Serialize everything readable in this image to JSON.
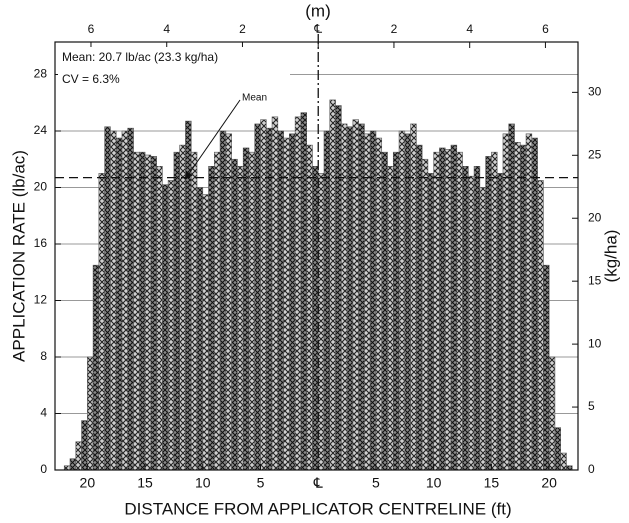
{
  "chart_data": {
    "type": "histogram",
    "y_label": "APPLICATION RATE (lb/ac)",
    "y2_label": "(kg/ha)",
    "x_label": "DISTANCE FROM APPLICATOR CENTRELINE (ft)",
    "x2_label": "(m)",
    "annotations": [
      "Mean: 20.7 lb/ac (23.3 kg/ha)",
      "CV = 6.3%",
      "Mean"
    ],
    "mean_line": 20.7,
    "bins": [
      -22,
      -21.5,
      -21,
      -20.5,
      -20,
      -19.5,
      -19,
      -18.5,
      -18,
      -17.5,
      -17,
      -16.5,
      -16,
      -15.5,
      -15,
      -14.5,
      -14,
      -13.5,
      -13,
      -12.5,
      -12,
      -11.5,
      -11,
      -10.5,
      -10,
      -9.5,
      -9,
      -8.5,
      -8,
      -7.5,
      -7,
      -6.5,
      -6,
      -5.5,
      -5,
      -4.5,
      -4,
      -3.5,
      -3,
      -2.5,
      -2,
      -1.5,
      -1,
      -0.5,
      0,
      0.5,
      1,
      1.5,
      2,
      2.5,
      3,
      3.5,
      4,
      4.5,
      5,
      5.5,
      6,
      6.5,
      7,
      7.5,
      8,
      8.5,
      9,
      9.5,
      10,
      10.5,
      11,
      11.5,
      12,
      12.5,
      13,
      13.5,
      14,
      14.5,
      15,
      15.5,
      16,
      16.5,
      17,
      17.5,
      18,
      18.5,
      19,
      19.5,
      20,
      20.5,
      21,
      21.5,
      22
    ],
    "values": [
      0.3,
      0.8,
      2,
      3.5,
      8,
      14.5,
      21,
      24.3,
      24,
      23.5,
      24,
      24.2,
      22.5,
      22.5,
      22.3,
      22.2,
      21.5,
      20.2,
      20.5,
      22.5,
      23,
      24.7,
      22.5,
      20,
      19.5,
      21.5,
      22.5,
      24,
      23.8,
      22,
      21.5,
      22.8,
      22.5,
      24.5,
      24.8,
      24.2,
      25,
      24,
      23.5,
      23.8,
      25,
      25.3,
      23,
      21.5,
      21,
      24,
      26.2,
      25.8,
      24.5,
      24.3,
      24.8,
      24.5,
      23.8,
      24,
      23.5,
      22.5,
      21.5,
      22.5,
      24,
      23.8,
      24.5,
      23,
      22,
      21,
      22.5,
      22.8,
      22.7,
      23,
      22.5,
      21.5,
      20.8,
      21.5,
      20,
      22.2,
      22.5,
      21,
      23.8,
      24.5,
      23.2,
      23,
      23.8,
      23.5,
      20.5,
      14.5,
      8,
      3,
      1.2,
      0.3
    ],
    "color": "#555555",
    "xlim": [
      -22.8,
      22.5
    ],
    "xticks": [
      {
        "value": -20,
        "label": "20"
      },
      {
        "value": -15,
        "label": "15"
      },
      {
        "value": -10,
        "label": "10"
      },
      {
        "value": -5,
        "label": "5"
      },
      {
        "value": 0,
        "label": "℄"
      },
      5,
      10,
      15,
      20
    ],
    "x2lim": [
      -6.95,
      6.86
    ],
    "x2ticks": [
      {
        "value": -6,
        "label": "6"
      },
      {
        "value": -4,
        "label": "4"
      },
      {
        "value": -2,
        "label": "2"
      },
      {
        "value": 0,
        "label": "℄"
      },
      2,
      4,
      6
    ],
    "ylim": [
      0,
      30.3
    ],
    "yticks": [
      0,
      4,
      8,
      12,
      16,
      20,
      24,
      28
    ],
    "y2lim": [
      0,
      34
    ],
    "y2ticks": [
      0,
      5,
      10,
      15,
      20,
      25,
      30
    ],
    "grid": true
  }
}
